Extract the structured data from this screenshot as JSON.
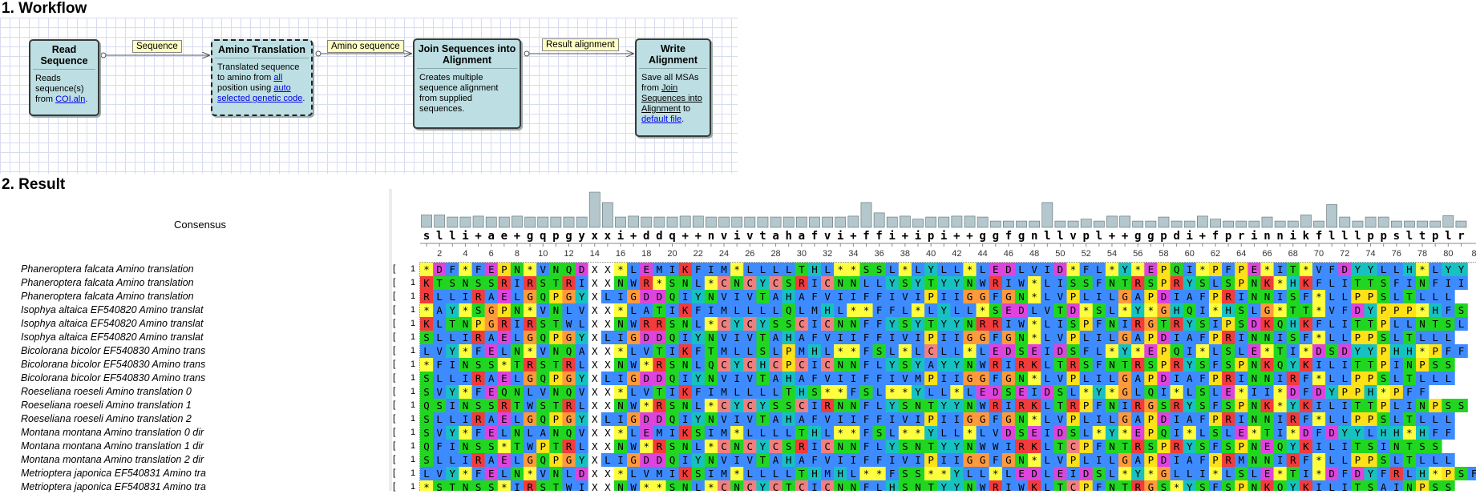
{
  "sections": {
    "workflow": "1. Workflow",
    "result": "2. Result"
  },
  "workflow": {
    "nodes": [
      {
        "title": "Read Sequence",
        "d1": "Reads",
        "d2": "sequence(s)",
        "d3": "from ",
        "link": "COI.aln",
        "d4": "."
      },
      {
        "title": "Amino Translation",
        "d1": "Translated sequence",
        "d2": "to amino from ",
        "link1": "all",
        "d3": "position using ",
        "link2": "auto",
        "link3": "selected genetic code",
        "d4": "."
      },
      {
        "title": "Join Sequences into Alignment",
        "d1": "Creates multiple",
        "d2": "sequence alignment",
        "d3": "from supplied",
        "d4": "sequences."
      },
      {
        "title": "Write Alignment",
        "d1": "Save all MSAs",
        "d2": "from ",
        "u1": "Join",
        "u2": "Sequences into",
        "u3": "Alignment",
        "d3": " to",
        "link": "default file",
        "d4": "."
      }
    ],
    "links": [
      "Sequence",
      "Amino sequence",
      "Result alignment"
    ]
  },
  "result": {
    "consensus_label": "Consensus",
    "consensus": "slli+ae+gqpgyxxi+ddq++nvivtahafvi+ffi+ipi++ggfgnllvpl++ggpdi+fprinnikflllppsltplr",
    "ruler": [
      "2",
      "4",
      "6",
      "8",
      "10",
      "12",
      "14",
      "16",
      "18",
      "20",
      "22",
      "24",
      "26",
      "28",
      "30",
      "32",
      "34",
      "36",
      "38",
      "40",
      "42",
      "44",
      "46",
      "48",
      "50",
      "52",
      "54",
      "56",
      "58",
      "60",
      "62",
      "64",
      "66",
      "68",
      "70",
      "72",
      "74",
      "76",
      "78",
      "80",
      "8"
    ],
    "start_pos": "1",
    "bracket": "[",
    "sequences": [
      {
        "name": "Phaneroptera  falcata  Amino  translation",
        "seq": "*DF*FEPN*VNQDXX*LEMIKFIM*LLLLTHL**SSL*LYLL*LEDLVID*FL*Y*EPQI*PFPE*IT*VFDYYLLH*LYY"
      },
      {
        "name": "Phaneroptera  falcata  Amino  translation",
        "seq": "KTSNSSRIRSTRIXXNWR*SNL*CNCYCSRICNNLLYSYTYYNWRIW*LISSFNTRSPRYSLSPNK*HKFLITTSFINFII"
      },
      {
        "name": "Phaneroptera  falcata  Amino  translation",
        "seq": "RLLIRAELGQPGYXLIGDDQIYNVIVTAHAFVIIFFIVIPIIGGFGN*LVPLILGAPDIAFPRINNISF*LLPPSLTLLL"
      },
      {
        "name": "Isophya  altaica  EF540820  Amino  translat",
        "seq": "*AY*SGPN*VNLVXX*LATIKFIMLLLLQLMHL**FFL*LYLL*SEDLVTD*SL*Y*GHQI*HSLG*TT*VFDYPPP*HFS"
      },
      {
        "name": "Isophya  altaica  EF540820  Amino  translat",
        "seq": "KLTNPGRIRSTWLXXNWRRSNL*CYCYSSCICNNFFYSYTYYNRRIW*LISPFNIRGTRYSIPSDKQHKFLITTPLLNTSL"
      },
      {
        "name": "Isophya  altaica  EF540820  Amino  translat",
        "seq": "SLLIRAELGQPGYXLIGDDQIYNVIVTAHAFVIIFFIVIPIIGGFGN*LVPLILGAPDIAFPRINNISF*LLPPSLTLLL"
      },
      {
        "name": "Bicolorana  bicolor  EF540830  Amino  trans",
        "seq": "LVY*FELN*VNQAXX*LVTIKFTMLLSLPMHL**FSL*LCLL*LEDSEIDSFL*Y*EPQI*LSLE*TI*DSDYYPHH*PFF"
      },
      {
        "name": "Bicolorana  bicolor  EF540830  Amino  trans",
        "seq": "*FINSS*TRSTRLXXNW*RSNLQCYCHCPCICNNFLYSYAYYNWRIRKLTRSFNTRSPRYSFSPNKQYKILITTPINPSS"
      },
      {
        "name": "Bicolorana  bicolor  EF540830  Amino  trans",
        "seq": "SLLIRAELGQPGYXLIGDDQIYNVIVTAHAFVIIFFIVMPIIGGFGN*LVPLILGAPDIAFPRINNIRF*LLPPSLTLLL"
      },
      {
        "name": "Roeseliana  roeseli  Amino  translation  0",
        "seq": "SVY*FEQNLVNQVXX*LVTIKFIMLLLLTHS**FSL**YLL*LEDSEIDSL*Y*GLQI*LSLE*II*DFDYPPH*PFF"
      },
      {
        "name": "Roeseliana  roeseli  Amino  translation  1",
        "seq": "QSINSSRTWSTRLXXNW*RSNL*CYCYSSCIRNNFLYSNTYYNWRIRKLTRPFNIRGSRYSFSPNK*YKILITTPLINPSS"
      },
      {
        "name": "Roeseliana  roeseli  Amino  translation  2",
        "seq": "SLLIRAELGQPGYXLIGDDQIYNVIVTAHAFVIIFFIVIPIIGGFGN*LVPLILGAPDIAFPRINNIRF*LLPPSLTLLL"
      },
      {
        "name": "Montana  montana  Amino  translation  0  dir",
        "seq": "SVY*FELNLANQVXX*LEMIKSIM*LLLLTHL**FSL**YLL*LVDSEIDSL*Y*EPQI*LSLE*TI*DFDYYLHH*HFF"
      },
      {
        "name": "Montana  montana  Amino  translation  1  dir",
        "seq": "QFINSS*TWPTRLXXNW*RSNL*CNCYCSRICNNFLYSNTYYNWWIRKLTCPFNTRSPRYSFSPNEQYKILITSINTSS"
      },
      {
        "name": "Montana  montana  Amino  translation  2  dir",
        "seq": "SLLIRAELGQPGYXLIGDDQIYNVIVTAHAFVIIFFIVIPIIGGFGN*LVPLILGAPDIAFPRMNNIRF*LLPPSLTLLL"
      },
      {
        "name": "Metrioptera  japonica  EF540831  Amino  tra",
        "seq": "LVY*FELN*VNLDXX*LVMIKSIM*LLLLTHMHL**FSS**YLL*LEDLEIDSL*Y*GLLI*LSLE*TI*DFDYFRLH*PSF"
      },
      {
        "name": "Metrioptera  japonica  EF540831  Amino  tra",
        "seq": "*STNSS*IRSTWIXXNW**SNL*CNCYCTCICNNFLHSNTYYNWRIWKLTCPFNTRGS*YSFSPNKQYKILITSAINPSS"
      }
    ]
  },
  "colors": {
    "grid": "#d7dcf0",
    "node_fill": "#bddfe3",
    "label_fill": "#ffffc4",
    "histogram": "#b3c7cc"
  }
}
